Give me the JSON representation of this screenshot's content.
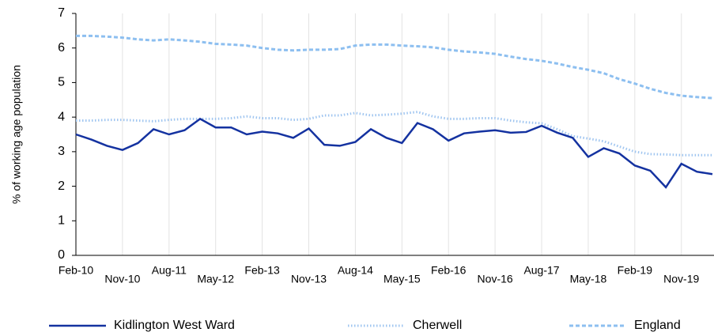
{
  "chart_data": {
    "type": "line",
    "y_label": "% of working age population",
    "categories": [
      "Feb-10",
      null,
      null,
      "Nov-10",
      null,
      null,
      "Aug-11",
      null,
      null,
      "May-12",
      null,
      null,
      "Feb-13",
      null,
      null,
      "Nov-13",
      null,
      null,
      "Aug-14",
      null,
      null,
      "May-15",
      null,
      null,
      "Feb-16",
      null,
      null,
      "Nov-16",
      null,
      null,
      "Aug-17",
      null,
      null,
      "May-18",
      null,
      null,
      "Feb-19",
      null,
      null,
      "Nov-19",
      null,
      null
    ],
    "series": [
      {
        "name": "Kidlington West Ward",
        "color": "#1432a0",
        "style": "solid",
        "values": [
          3.5,
          3.35,
          3.17,
          3.05,
          3.25,
          3.65,
          3.5,
          3.62,
          3.95,
          3.7,
          3.7,
          3.5,
          3.58,
          3.53,
          3.4,
          3.67,
          3.2,
          3.17,
          3.28,
          3.65,
          3.4,
          3.25,
          3.83,
          3.65,
          3.32,
          3.53,
          3.58,
          3.62,
          3.55,
          3.57,
          3.75,
          3.55,
          3.4,
          2.85,
          3.1,
          2.95,
          2.6,
          2.45,
          1.97,
          2.65,
          2.42,
          2.35
        ]
      },
      {
        "name": "Cherwell",
        "color": "#9fc5f0",
        "style": "dotted",
        "values": [
          3.9,
          3.9,
          3.92,
          3.92,
          3.9,
          3.88,
          3.92,
          3.95,
          3.95,
          3.95,
          3.97,
          4.02,
          3.97,
          3.97,
          3.92,
          3.95,
          4.05,
          4.05,
          4.12,
          4.05,
          4.07,
          4.1,
          4.15,
          4.02,
          3.95,
          3.95,
          3.97,
          3.97,
          3.9,
          3.85,
          3.82,
          3.65,
          3.45,
          3.38,
          3.3,
          3.15,
          3.0,
          2.93,
          2.92,
          2.9,
          2.9,
          2.9
        ]
      },
      {
        "name": "England",
        "color": "#8dbff0",
        "style": "dashed",
        "values": [
          6.35,
          6.35,
          6.33,
          6.3,
          6.25,
          6.22,
          6.25,
          6.22,
          6.18,
          6.12,
          6.1,
          6.07,
          6.0,
          5.95,
          5.93,
          5.95,
          5.95,
          5.97,
          6.07,
          6.1,
          6.1,
          6.07,
          6.05,
          6.02,
          5.95,
          5.9,
          5.87,
          5.83,
          5.75,
          5.68,
          5.63,
          5.55,
          5.45,
          5.37,
          5.27,
          5.1,
          4.97,
          4.82,
          4.7,
          4.62,
          4.58,
          4.55
        ]
      }
    ],
    "ylim": [
      0,
      7
    ],
    "yticks": [
      0,
      1,
      2,
      3,
      4,
      5,
      6,
      7
    ],
    "grid": "x",
    "legend": "bottom"
  }
}
